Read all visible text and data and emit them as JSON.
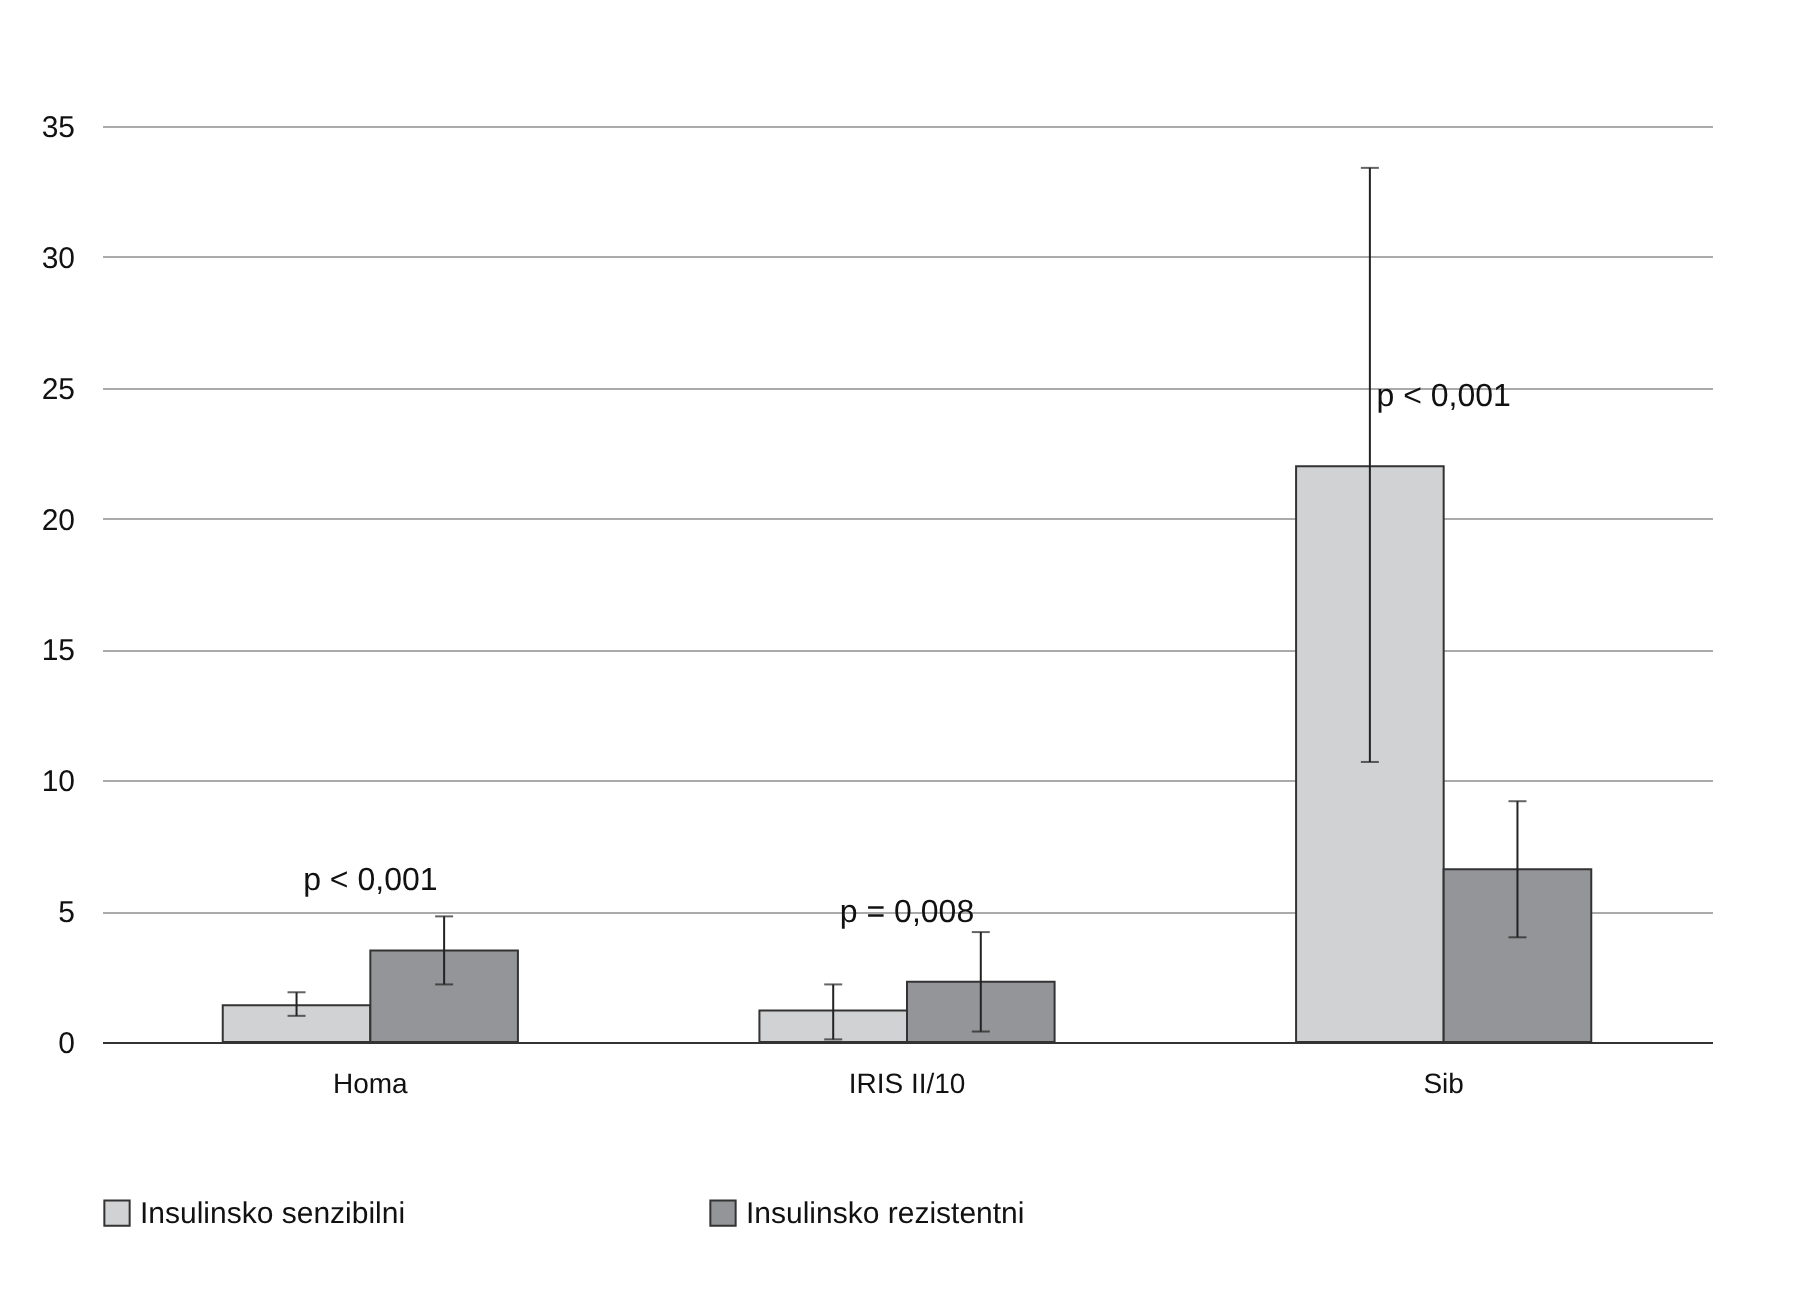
{
  "chart_data": {
    "type": "bar",
    "categories": [
      "Homa",
      "IRIS II/10",
      "Sib"
    ],
    "series": [
      {
        "name": "Insulinsko senzibilni",
        "color": "#d1d2d4",
        "values": [
          1.4,
          1.2,
          22.0
        ],
        "errors": [
          [
            1.0,
            1.9
          ],
          [
            0.1,
            2.2
          ],
          [
            10.7,
            33.4
          ]
        ]
      },
      {
        "name": "Insulinsko rezistentni",
        "color": "#939598",
        "values": [
          3.5,
          2.3,
          6.6
        ],
        "errors": [
          [
            2.2,
            4.8
          ],
          [
            0.4,
            4.2
          ],
          [
            4.0,
            9.2
          ]
        ]
      }
    ],
    "ylim": [
      0,
      35
    ],
    "yticks": [
      0,
      5,
      10,
      15,
      20,
      25,
      30,
      35
    ],
    "grid": "y",
    "legend": "bottom",
    "annotations": [
      "p < 0,001",
      "p = 0,008",
      "p < 0,001"
    ]
  }
}
